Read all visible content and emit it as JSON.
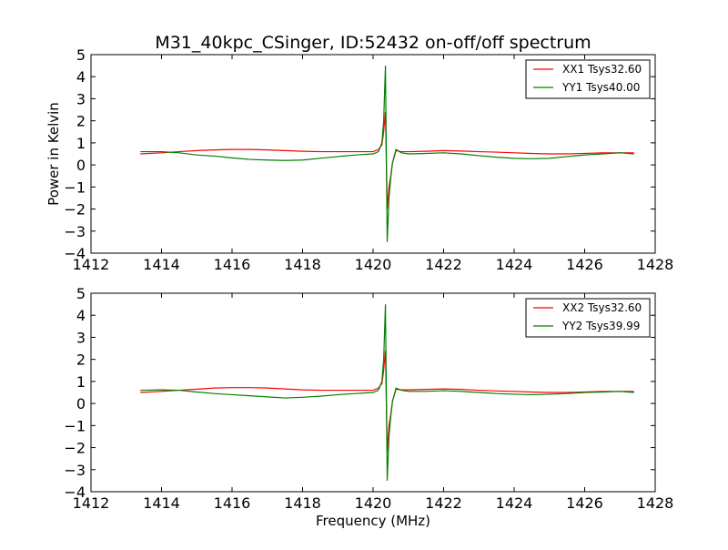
{
  "chart_data": [
    {
      "type": "line",
      "title": "M31_40kpc_CSinger, ID:52432 on-off/off spectrum",
      "xlabel": "",
      "ylabel": "Power in Kelvin",
      "xlim": [
        1412,
        1428
      ],
      "ylim": [
        -4,
        5
      ],
      "xticks": [
        1412,
        1414,
        1416,
        1418,
        1420,
        1422,
        1424,
        1426,
        1428
      ],
      "yticks": [
        -4,
        -3,
        -2,
        -1,
        0,
        1,
        2,
        3,
        4,
        5
      ],
      "grid": false,
      "legend_position": "top-right",
      "series": [
        {
          "name": "XX1 Tsys32.60",
          "color": "#ff0000",
          "x": [
            1413.4,
            1414.0,
            1414.5,
            1415.0,
            1415.5,
            1416.0,
            1416.5,
            1417.0,
            1417.5,
            1418.0,
            1418.5,
            1419.0,
            1419.5,
            1420.0,
            1420.15,
            1420.25,
            1420.3,
            1420.35,
            1420.4,
            1420.45,
            1420.5,
            1420.55,
            1420.65,
            1420.8,
            1421.0,
            1421.5,
            1422.0,
            1422.5,
            1423.0,
            1423.5,
            1424.0,
            1424.5,
            1425.0,
            1425.5,
            1426.0,
            1426.5,
            1427.0,
            1427.4
          ],
          "y": [
            0.5,
            0.55,
            0.6,
            0.65,
            0.68,
            0.7,
            0.7,
            0.68,
            0.65,
            0.62,
            0.6,
            0.6,
            0.6,
            0.6,
            0.7,
            0.9,
            1.5,
            2.4,
            -2.0,
            -1.0,
            -0.5,
            0.1,
            0.65,
            0.6,
            0.6,
            0.62,
            0.65,
            0.63,
            0.6,
            0.58,
            0.55,
            0.52,
            0.5,
            0.5,
            0.52,
            0.55,
            0.55,
            0.55
          ]
        },
        {
          "name": "YY1 Tsys40.00",
          "color": "#008000",
          "x": [
            1413.4,
            1414.0,
            1414.5,
            1415.0,
            1415.5,
            1416.0,
            1416.5,
            1417.0,
            1417.5,
            1418.0,
            1418.5,
            1419.0,
            1419.5,
            1420.0,
            1420.15,
            1420.25,
            1420.3,
            1420.35,
            1420.4,
            1420.45,
            1420.5,
            1420.55,
            1420.65,
            1420.8,
            1421.0,
            1421.5,
            1422.0,
            1422.5,
            1423.0,
            1423.5,
            1424.0,
            1424.5,
            1425.0,
            1425.5,
            1426.0,
            1426.5,
            1427.0,
            1427.4
          ],
          "y": [
            0.6,
            0.6,
            0.55,
            0.45,
            0.4,
            0.32,
            0.25,
            0.22,
            0.2,
            0.22,
            0.3,
            0.38,
            0.45,
            0.5,
            0.6,
            1.0,
            2.0,
            4.5,
            -3.5,
            -1.5,
            -0.6,
            0.1,
            0.7,
            0.55,
            0.5,
            0.52,
            0.55,
            0.5,
            0.42,
            0.35,
            0.3,
            0.28,
            0.3,
            0.38,
            0.45,
            0.5,
            0.55,
            0.5
          ]
        }
      ]
    },
    {
      "type": "line",
      "title": "",
      "xlabel": "Frequency (MHz)",
      "ylabel": "",
      "xlim": [
        1412,
        1428
      ],
      "ylim": [
        -4,
        5
      ],
      "xticks": [
        1412,
        1414,
        1416,
        1418,
        1420,
        1422,
        1424,
        1426,
        1428
      ],
      "yticks": [
        -4,
        -3,
        -2,
        -1,
        0,
        1,
        2,
        3,
        4,
        5
      ],
      "grid": false,
      "legend_position": "top-right",
      "series": [
        {
          "name": "XX2 Tsys32.60",
          "color": "#ff0000",
          "x": [
            1413.4,
            1414.0,
            1414.5,
            1415.0,
            1415.5,
            1416.0,
            1416.5,
            1417.0,
            1417.5,
            1418.0,
            1418.5,
            1419.0,
            1419.5,
            1420.0,
            1420.15,
            1420.25,
            1420.3,
            1420.35,
            1420.4,
            1420.45,
            1420.5,
            1420.55,
            1420.65,
            1420.8,
            1421.0,
            1421.5,
            1422.0,
            1422.5,
            1423.0,
            1423.5,
            1424.0,
            1424.5,
            1425.0,
            1425.5,
            1426.0,
            1426.5,
            1427.0,
            1427.4
          ],
          "y": [
            0.5,
            0.55,
            0.6,
            0.65,
            0.7,
            0.72,
            0.72,
            0.7,
            0.66,
            0.62,
            0.6,
            0.6,
            0.6,
            0.6,
            0.7,
            0.9,
            1.5,
            2.4,
            -2.2,
            -1.0,
            -0.5,
            0.1,
            0.65,
            0.62,
            0.62,
            0.64,
            0.66,
            0.64,
            0.6,
            0.57,
            0.55,
            0.52,
            0.5,
            0.5,
            0.52,
            0.55,
            0.55,
            0.55
          ]
        },
        {
          "name": "YY2 Tsys39.99",
          "color": "#008000",
          "x": [
            1413.4,
            1414.0,
            1414.5,
            1415.0,
            1415.5,
            1416.0,
            1416.5,
            1417.0,
            1417.5,
            1418.0,
            1418.5,
            1419.0,
            1419.5,
            1420.0,
            1420.15,
            1420.25,
            1420.3,
            1420.35,
            1420.4,
            1420.45,
            1420.5,
            1420.55,
            1420.65,
            1420.8,
            1421.0,
            1421.5,
            1422.0,
            1422.5,
            1423.0,
            1423.5,
            1424.0,
            1424.5,
            1425.0,
            1425.5,
            1426.0,
            1426.5,
            1427.0,
            1427.4
          ],
          "y": [
            0.6,
            0.62,
            0.6,
            0.52,
            0.45,
            0.4,
            0.35,
            0.3,
            0.25,
            0.28,
            0.33,
            0.4,
            0.45,
            0.5,
            0.6,
            1.0,
            2.0,
            4.5,
            -3.5,
            -1.5,
            -0.6,
            0.1,
            0.7,
            0.6,
            0.55,
            0.55,
            0.58,
            0.55,
            0.5,
            0.45,
            0.42,
            0.4,
            0.42,
            0.45,
            0.5,
            0.52,
            0.55,
            0.5
          ]
        }
      ]
    }
  ]
}
